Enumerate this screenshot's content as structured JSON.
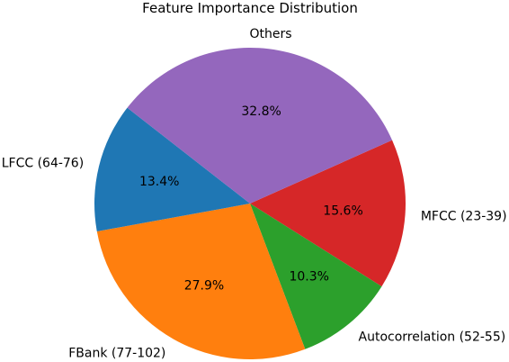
{
  "chart_data": {
    "type": "pie",
    "title": "Feature Importance Distribution",
    "slices": [
      {
        "label": "MFCC (23-39)",
        "value": 15.6,
        "pct_label": "15.6%",
        "color": "#d62728"
      },
      {
        "label": "Autocorrelation (52-55)",
        "value": 10.3,
        "pct_label": "10.3%",
        "color": "#2ca02c"
      },
      {
        "label": "FBank (77-102)",
        "value": 27.9,
        "pct_label": "27.9%",
        "color": "#ff7f0e"
      },
      {
        "label": "LFCC (64-76)",
        "value": 13.4,
        "pct_label": "13.4%",
        "color": "#1f77b4"
      },
      {
        "label": "Others",
        "value": 32.8,
        "pct_label": "32.8%",
        "color": "#9467bd"
      }
    ],
    "start_angle_deg": 24,
    "direction": "clockwise",
    "legend": "none"
  }
}
